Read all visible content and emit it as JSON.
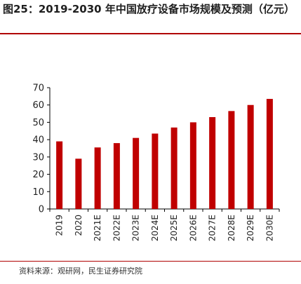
{
  "figure": {
    "title": "图25：2019-2030 年中国放疗设备市场规模及预测（亿元）",
    "source": "资料来源：观研网，民生证券研究院"
  },
  "colors": {
    "bar": "#C00000",
    "rule": "#B00000",
    "axis": "#000000"
  },
  "chart_data": {
    "type": "bar",
    "title": "图25：2019-2030 年中国放疗设备市场规模及预测（亿元）",
    "xlabel": "",
    "ylabel": "",
    "categories": [
      "2019",
      "2020",
      "2021E",
      "2022E",
      "2023E",
      "2024E",
      "2025E",
      "2026E",
      "2027E",
      "2028E",
      "2029E",
      "2030E"
    ],
    "values": [
      39,
      29,
      35.5,
      38,
      41,
      43.5,
      47,
      50,
      53,
      56.5,
      60,
      63.5
    ],
    "ylim": [
      0,
      70
    ],
    "yticks": [
      0,
      10,
      20,
      30,
      40,
      50,
      60,
      70
    ],
    "grid": false,
    "legend": "none"
  }
}
